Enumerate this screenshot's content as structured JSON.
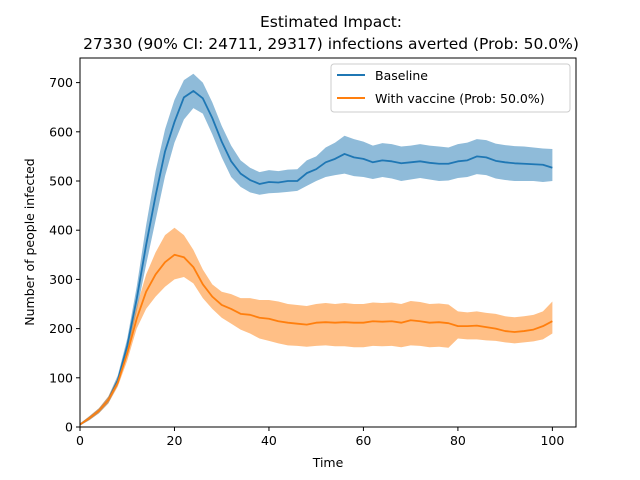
{
  "chart_data": {
    "type": "line",
    "title_line1": "Estimated Impact:",
    "title_line2": "27330 (90% CI: 24711, 29317) infections averted (Prob: 50.0%)",
    "xlabel": "Time",
    "ylabel": "Number of people infected",
    "xlim": [
      0,
      105
    ],
    "ylim": [
      0,
      750
    ],
    "xticks": [
      0,
      20,
      40,
      60,
      80,
      100
    ],
    "yticks": [
      0,
      100,
      200,
      300,
      400,
      500,
      600,
      700
    ],
    "grid": false,
    "legend_position": "top-right",
    "colors": {
      "baseline": "#1f77b4",
      "vaccine": "#ff7f0e"
    },
    "series": [
      {
        "name": "Baseline",
        "color": "#1f77b4",
        "x": [
          0,
          2,
          4,
          6,
          8,
          10,
          12,
          14,
          16,
          18,
          20,
          22,
          24,
          26,
          28,
          30,
          32,
          34,
          36,
          38,
          40,
          42,
          44,
          46,
          48,
          50,
          52,
          54,
          56,
          58,
          60,
          62,
          64,
          66,
          68,
          70,
          72,
          74,
          76,
          78,
          80,
          82,
          84,
          86,
          88,
          90,
          92,
          94,
          96,
          98,
          100
        ],
        "y": [
          5,
          18,
          33,
          55,
          95,
          165,
          260,
          370,
          470,
          560,
          620,
          670,
          683,
          668,
          628,
          580,
          540,
          515,
          502,
          494,
          498,
          497,
          500,
          500,
          516,
          524,
          538,
          545,
          555,
          548,
          545,
          538,
          542,
          540,
          536,
          538,
          540,
          537,
          535,
          535,
          540,
          542,
          550,
          548,
          541,
          538,
          536,
          535,
          534,
          533,
          527
        ],
        "lower": [
          3,
          14,
          28,
          48,
          85,
          150,
          235,
          330,
          420,
          510,
          578,
          625,
          648,
          637,
          595,
          548,
          508,
          488,
          477,
          472,
          475,
          476,
          478,
          480,
          490,
          500,
          508,
          512,
          515,
          510,
          508,
          504,
          508,
          505,
          500,
          503,
          506,
          503,
          500,
          501,
          506,
          508,
          514,
          512,
          505,
          502,
          500,
          500,
          500,
          498,
          500
        ],
        "upper": [
          7,
          22,
          38,
          62,
          105,
          180,
          285,
          410,
          520,
          605,
          665,
          705,
          718,
          700,
          660,
          612,
          572,
          542,
          527,
          518,
          522,
          520,
          523,
          524,
          542,
          550,
          568,
          578,
          592,
          585,
          580,
          572,
          577,
          575,
          570,
          572,
          575,
          572,
          570,
          568,
          575,
          578,
          585,
          583,
          576,
          573,
          571,
          570,
          568,
          566,
          565
        ]
      },
      {
        "name": "With vaccine (Prob: 50.0%)",
        "color": "#ff7f0e",
        "x": [
          0,
          2,
          4,
          6,
          8,
          10,
          12,
          14,
          16,
          18,
          20,
          22,
          24,
          26,
          28,
          30,
          32,
          34,
          36,
          38,
          40,
          42,
          44,
          46,
          48,
          50,
          52,
          54,
          56,
          58,
          60,
          62,
          64,
          66,
          68,
          70,
          72,
          74,
          76,
          78,
          80,
          82,
          84,
          86,
          88,
          90,
          92,
          94,
          96,
          98,
          100
        ],
        "y": [
          5,
          18,
          33,
          55,
          90,
          150,
          220,
          275,
          310,
          335,
          350,
          345,
          325,
          290,
          265,
          248,
          240,
          230,
          228,
          222,
          220,
          215,
          212,
          210,
          208,
          212,
          213,
          212,
          213,
          212,
          212,
          215,
          214,
          215,
          212,
          217,
          215,
          212,
          213,
          211,
          205,
          205,
          206,
          203,
          200,
          195,
          193,
          195,
          198,
          205,
          215
        ],
        "lower": [
          3,
          14,
          28,
          48,
          82,
          135,
          200,
          240,
          265,
          285,
          300,
          305,
          292,
          262,
          240,
          222,
          210,
          198,
          190,
          180,
          175,
          170,
          166,
          165,
          163,
          165,
          166,
          164,
          164,
          162,
          162,
          165,
          164,
          165,
          162,
          166,
          165,
          162,
          163,
          161,
          180,
          178,
          178,
          176,
          175,
          172,
          170,
          172,
          174,
          178,
          190
        ],
        "upper": [
          7,
          22,
          38,
          62,
          100,
          165,
          245,
          310,
          355,
          390,
          405,
          390,
          360,
          320,
          290,
          275,
          270,
          262,
          262,
          258,
          258,
          255,
          250,
          248,
          246,
          250,
          252,
          250,
          252,
          250,
          250,
          253,
          252,
          253,
          250,
          256,
          254,
          250,
          251,
          249,
          235,
          233,
          235,
          232,
          230,
          225,
          223,
          225,
          228,
          235,
          255
        ]
      }
    ]
  }
}
